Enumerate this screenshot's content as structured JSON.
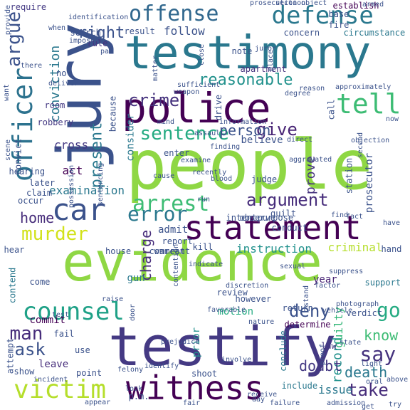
{
  "words": [
    {
      "t": "evidence",
      "c": "#8fd744"
    },
    {
      "t": "people",
      "c": "#8fd744"
    },
    {
      "t": "testify",
      "c": "#443983"
    },
    {
      "t": "testimony",
      "c": "#2a788e"
    },
    {
      "t": "jury",
      "c": "#3b528b"
    },
    {
      "t": "police",
      "c": "#440154"
    },
    {
      "t": "statement",
      "c": "#440154"
    },
    {
      "t": "witness",
      "c": "#440154"
    },
    {
      "t": "officer",
      "c": "#2c728e"
    },
    {
      "t": "defense",
      "c": "#2a788e"
    },
    {
      "t": "offense",
      "c": "#31688e"
    },
    {
      "t": "tell",
      "c": "#3dbc74"
    },
    {
      "t": "car",
      "c": "#3b528b"
    },
    {
      "t": "counsel",
      "c": "#1fa187"
    },
    {
      "t": "victim",
      "c": "#b5de2b"
    },
    {
      "t": "murder",
      "c": "#d2e21b"
    },
    {
      "t": "argue",
      "c": "#3b528b"
    },
    {
      "t": "conviction",
      "c": "#2a788e"
    },
    {
      "t": "reasonable",
      "c": "#21918c"
    },
    {
      "t": "crime",
      "c": "#46337e"
    },
    {
      "t": "sentence",
      "c": "#25ab82"
    },
    {
      "t": "arrest",
      "c": "#3dbc74"
    },
    {
      "t": "argument",
      "c": "#472d7b"
    },
    {
      "t": "error",
      "c": "#2a788e"
    },
    {
      "t": "give",
      "c": "#482475"
    },
    {
      "t": "person",
      "c": "#3b528b"
    },
    {
      "t": "deny",
      "c": "#3b528b"
    },
    {
      "t": "say",
      "c": "#46337e"
    },
    {
      "t": "take",
      "c": "#472d7b"
    },
    {
      "t": "go",
      "c": "#25ab82"
    },
    {
      "t": "man",
      "c": "#472d7b"
    },
    {
      "t": "ask",
      "c": "#3b528b"
    },
    {
      "t": "present",
      "c": "#2a788e"
    },
    {
      "t": "right",
      "c": "#3b528b"
    },
    {
      "t": "cross",
      "c": "#443983"
    },
    {
      "t": "home",
      "c": "#472d7b"
    },
    {
      "t": "charge",
      "c": "#472d7b"
    },
    {
      "t": "examination",
      "c": "#2a788e"
    },
    {
      "t": "record",
      "c": "#21918c"
    },
    {
      "t": "guilty",
      "c": "#35b779"
    },
    {
      "t": "issue",
      "c": "#2a788e"
    },
    {
      "t": "know",
      "c": "#3dbc74"
    },
    {
      "t": "prove",
      "c": "#46337e"
    },
    {
      "t": "doubt",
      "c": "#443983"
    },
    {
      "t": "death",
      "c": "#2a788e"
    },
    {
      "t": "instruction",
      "c": "#21918c"
    },
    {
      "t": "criminal",
      "c": "#b5de2b"
    },
    {
      "t": "follow",
      "c": "#3b528b"
    },
    {
      "t": "act",
      "c": "#440154"
    },
    {
      "t": "motion",
      "c": "#25ab82"
    },
    {
      "t": "believe",
      "c": "#3b528b"
    },
    {
      "t": "prosecutor",
      "c": "#3b528b"
    },
    {
      "t": "year",
      "c": "#482475"
    },
    {
      "t": "prior",
      "c": "#21918c"
    },
    {
      "t": "gun",
      "c": "#2a788e"
    },
    {
      "t": "leave",
      "c": "#472d7b"
    },
    {
      "t": "contend",
      "c": "#2a788e"
    },
    {
      "t": "commit",
      "c": "#440154"
    },
    {
      "t": "attempt",
      "c": "#3b528b"
    },
    {
      "t": "consider",
      "c": "#2a788e"
    },
    {
      "t": "admit",
      "c": "#3b528b"
    },
    {
      "t": "room",
      "c": "#443983"
    },
    {
      "t": "robbery",
      "c": "#443983"
    },
    {
      "t": "require",
      "c": "#443983"
    },
    {
      "t": "search",
      "c": "#3b528b"
    },
    {
      "t": "result",
      "c": "#3b528b"
    },
    {
      "t": "establish",
      "c": "#440154"
    },
    {
      "t": "circumstance",
      "c": "#2a788e"
    },
    {
      "t": "concern",
      "c": "#3b528b"
    },
    {
      "t": "base",
      "c": "#3b528b"
    },
    {
      "t": "fire",
      "c": "#3b528b"
    },
    {
      "t": "apartment",
      "c": "#46337e"
    },
    {
      "t": "hearing",
      "c": "#3b528b"
    },
    {
      "t": "rule",
      "c": "#46337e"
    },
    {
      "t": "judge",
      "c": "#3b528b"
    },
    {
      "t": "law",
      "c": "#443983"
    },
    {
      "t": "conclude",
      "c": "#2a788e"
    },
    {
      "t": "review",
      "c": "#3b528b"
    },
    {
      "t": "support",
      "c": "#2a788e"
    },
    {
      "t": "hand",
      "c": "#3b528b"
    },
    {
      "t": "house",
      "c": "#3b528b"
    },
    {
      "t": "warrant",
      "c": "#3b528b"
    },
    {
      "t": "comment",
      "c": "#3b528b"
    },
    {
      "t": "report",
      "c": "#3b528b"
    },
    {
      "t": "hear",
      "c": "#3b528b"
    },
    {
      "t": "claim",
      "c": "#3b528b"
    },
    {
      "t": "occur",
      "c": "#3b528b"
    },
    {
      "t": "later",
      "c": "#3b528b"
    },
    {
      "t": "convict",
      "c": "#3b528b"
    },
    {
      "t": "because",
      "c": "#3b528b"
    },
    {
      "t": "come",
      "c": "#3b528b"
    },
    {
      "t": "fail",
      "c": "#3b528b"
    },
    {
      "t": "shoot",
      "c": "#3b528b"
    },
    {
      "t": "use",
      "c": "#3b528b"
    },
    {
      "t": "show",
      "c": "#3b528b"
    },
    {
      "t": "point",
      "c": "#3b528b"
    },
    {
      "t": "include",
      "c": "#2a788e"
    },
    {
      "t": "determine",
      "c": "#440154"
    },
    {
      "t": "return",
      "c": "#3b528b"
    },
    {
      "t": "verdict",
      "c": "#3b528b"
    },
    {
      "t": "station",
      "c": "#3b528b"
    },
    {
      "t": "conduct",
      "c": "#3b528b"
    },
    {
      "t": "guilt",
      "c": "#3b528b"
    },
    {
      "t": "intent",
      "c": "#3b528b"
    },
    {
      "t": "observe",
      "c": "#3b528b"
    },
    {
      "t": "purpose",
      "c": "#3b528b"
    },
    {
      "t": "object",
      "c": "#3b528b"
    },
    {
      "t": "objection",
      "c": "#3b528b"
    },
    {
      "t": "second",
      "c": "#3b528b"
    },
    {
      "t": "reason",
      "c": "#3b528b"
    },
    {
      "t": "place",
      "c": "#3b528b"
    },
    {
      "t": "juror",
      "c": "#3b528b"
    },
    {
      "t": "note",
      "c": "#3b528b"
    },
    {
      "t": "enter",
      "c": "#3b528b"
    },
    {
      "t": "call",
      "c": "#3b528b"
    },
    {
      "t": "drive",
      "c": "#3b528b"
    },
    {
      "t": "not",
      "c": "#3b528b"
    },
    {
      "t": "when",
      "c": "#3b528b"
    },
    {
      "t": "kill",
      "c": "#3b528b"
    },
    {
      "t": "however",
      "c": "#3b528b"
    },
    {
      "t": "p.m.",
      "c": "#3b528b"
    },
    {
      "t": "prosecution",
      "c": "#3b528b"
    },
    {
      "t": "section",
      "c": "#3b528b"
    },
    {
      "t": "armed",
      "c": "#3b528b"
    },
    {
      "t": "provide",
      "c": "#3b528b"
    },
    {
      "t": "identification",
      "c": "#3b528b"
    },
    {
      "t": "want",
      "c": "#3b528b"
    },
    {
      "t": "sufficient",
      "c": "#3b528b"
    },
    {
      "t": "degree",
      "c": "#3b528b"
    },
    {
      "t": "approximately",
      "c": "#3b528b"
    },
    {
      "t": "deliver",
      "c": "#3b528b"
    },
    {
      "t": "weapon",
      "c": "#3b528b"
    },
    {
      "t": "information",
      "c": "#3b528b"
    },
    {
      "t": "scene",
      "c": "#3b528b"
    },
    {
      "t": "direct",
      "c": "#3b528b"
    },
    {
      "t": "possession",
      "c": "#3b528b"
    },
    {
      "t": "aggravated",
      "c": "#3b528b"
    },
    {
      "t": "sentencing",
      "c": "#3b528b"
    },
    {
      "t": "examine",
      "c": "#3b528b"
    },
    {
      "t": "finding",
      "c": "#3b528b"
    },
    {
      "t": "blood",
      "c": "#3b528b"
    },
    {
      "t": "contention",
      "c": "#3b528b"
    },
    {
      "t": "sexual",
      "c": "#3b528b"
    },
    {
      "t": "suppress",
      "c": "#3b528b"
    },
    {
      "t": "factor",
      "c": "#3b528b"
    },
    {
      "t": "state",
      "c": "#3b528b"
    },
    {
      "t": "stand",
      "c": "#3b528b"
    },
    {
      "t": "light",
      "c": "#3b528b"
    },
    {
      "t": "door",
      "c": "#3b528b"
    },
    {
      "t": "felony",
      "c": "#3b528b"
    },
    {
      "t": "identify",
      "c": "#3b528b"
    },
    {
      "t": "look",
      "c": "#3b528b"
    },
    {
      "t": "fair",
      "c": "#3b528b"
    },
    {
      "t": "appear",
      "c": "#3b528b"
    },
    {
      "t": "receive",
      "c": "#3b528b"
    },
    {
      "t": "failure",
      "c": "#3b528b"
    },
    {
      "t": "admission",
      "c": "#3b528b"
    },
    {
      "t": "incident",
      "c": "#3b528b"
    },
    {
      "t": "test",
      "c": "#3b528b"
    },
    {
      "t": "indicate",
      "c": "#3b528b"
    },
    {
      "t": "day",
      "c": "#3b528b"
    },
    {
      "t": "have",
      "c": "#3b528b"
    },
    {
      "t": "try",
      "c": "#3b528b"
    },
    {
      "t": "matter",
      "c": "#3b528b"
    },
    {
      "t": "close",
      "c": "#3b528b"
    },
    {
      "t": "mind",
      "c": "#3b528b"
    },
    {
      "t": "assault",
      "c": "#3b528b"
    },
    {
      "t": "proof",
      "c": "#3b528b"
    },
    {
      "t": "discretion",
      "c": "#3b528b"
    },
    {
      "t": "cause",
      "c": "#3b528b"
    },
    {
      "t": "raise",
      "c": "#3b528b"
    },
    {
      "t": "prejudice",
      "c": "#3b528b"
    },
    {
      "t": "impose",
      "c": "#3b528b"
    },
    {
      "t": "par",
      "c": "#3b528b"
    },
    {
      "t": "there",
      "c": "#3b528b"
    },
    {
      "t": "now",
      "c": "#3b528b"
    },
    {
      "t": "get",
      "c": "#3b528b"
    },
    {
      "t": "above",
      "c": "#3b528b"
    },
    {
      "t": "recently",
      "c": "#3b528b"
    },
    {
      "t": "favorable",
      "c": "#3b528b"
    },
    {
      "t": "nature",
      "c": "#3b528b"
    },
    {
      "t": "vehicle",
      "c": "#3b528b"
    },
    {
      "t": "oral",
      "c": "#3b528b"
    },
    {
      "t": "involve",
      "c": "#3b528b"
    },
    {
      "t": "run",
      "c": "#3b528b"
    },
    {
      "t": "fact",
      "c": "#3b528b"
    },
    {
      "t": "photograph",
      "c": "#3b528b"
    },
    {
      "t": "find",
      "c": "#3b528b"
    },
    {
      "t": "rebuttal",
      "c": "#3b528b"
    },
    {
      "t": "testified",
      "c": "#3b528b"
    },
    {
      "t": "trial",
      "c": "#3b528b"
    },
    {
      "t": "arrive",
      "c": "#3b528b"
    }
  ]
}
